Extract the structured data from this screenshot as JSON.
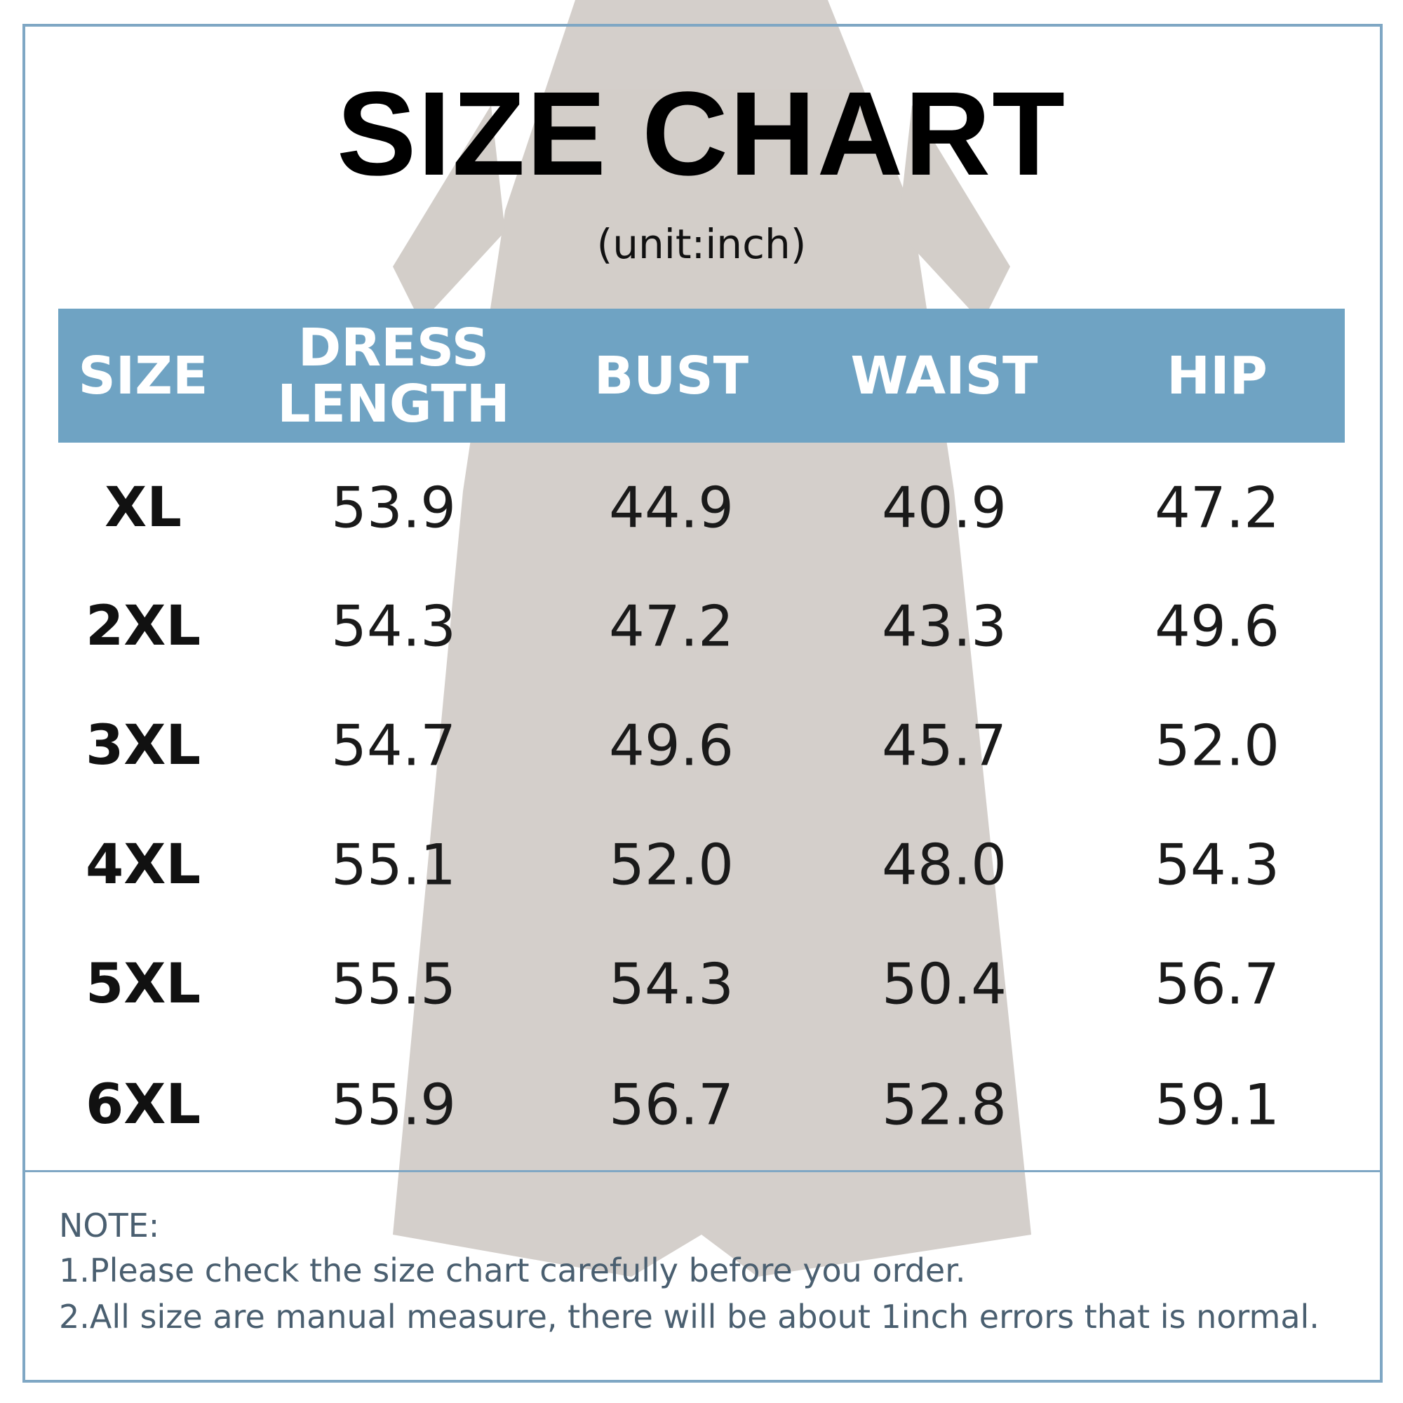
{
  "header": {
    "title": "SIZE CHART",
    "subtitle": "(unit:inch)"
  },
  "table": {
    "columns": [
      [
        "SIZE"
      ],
      [
        "DRESS",
        "LENGTH"
      ],
      [
        "BUST"
      ],
      [
        "WAIST"
      ],
      [
        "HIP"
      ]
    ],
    "rows": [
      [
        "XL",
        "53.9",
        "44.9",
        "40.9",
        "47.2"
      ],
      [
        "2XL",
        "54.3",
        "47.2",
        "43.3",
        "49.6"
      ],
      [
        "3XL",
        "54.7",
        "49.6",
        "45.7",
        "52.0"
      ],
      [
        "4XL",
        "55.1",
        "52.0",
        "48.0",
        "54.3"
      ],
      [
        "5XL",
        "55.5",
        "54.3",
        "50.4",
        "56.7"
      ],
      [
        "6XL",
        "55.9",
        "56.7",
        "52.8",
        "59.1"
      ]
    ]
  },
  "note": {
    "label": "NOTE:",
    "lines": [
      "1.Please check the size chart carefully before you order.",
      "2.All size are manual measure, there will be about 1inch errors that is normal."
    ]
  }
}
